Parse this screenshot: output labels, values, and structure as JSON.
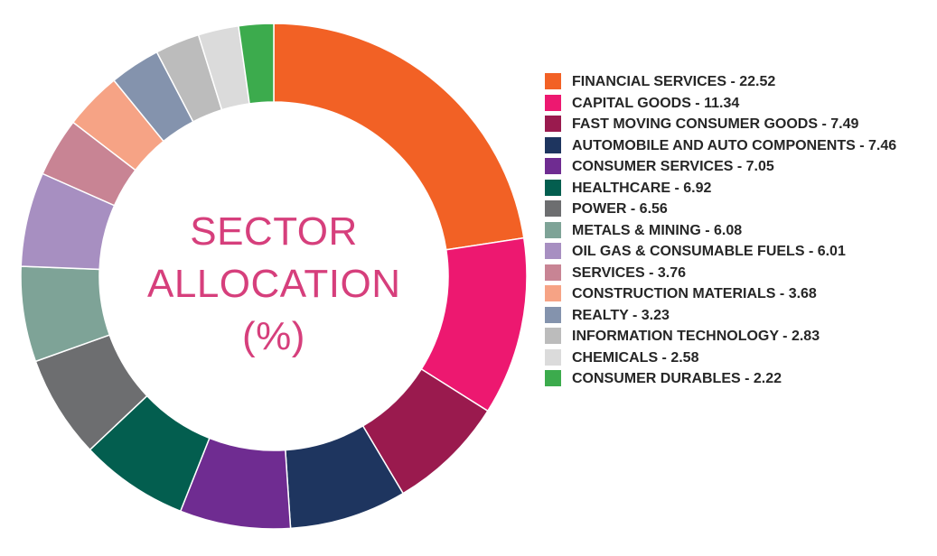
{
  "center_title": {
    "line1": "SECTOR",
    "line2": "ALLOCATION",
    "line3": "(%)"
  },
  "chart_data": {
    "type": "pie",
    "title": "SECTOR ALLOCATION (%)",
    "donut": true,
    "start_angle_deg": 0,
    "direction": "clockwise",
    "categories": [
      "FINANCIAL SERVICES",
      "CAPITAL GOODS",
      "FAST MOVING CONSUMER GOODS",
      "AUTOMOBILE AND AUTO COMPONENTS",
      "CONSUMER SERVICES",
      "HEALTHCARE",
      "POWER",
      "METALS & MINING",
      "OIL GAS & CONSUMABLE FUELS",
      "SERVICES",
      "CONSTRUCTION MATERIALS",
      "REALTY",
      "INFORMATION TECHNOLOGY",
      "CHEMICALS",
      "CONSUMER DURABLES"
    ],
    "values": [
      22.52,
      11.34,
      7.49,
      7.46,
      7.05,
      6.92,
      6.56,
      6.08,
      6.01,
      3.76,
      3.68,
      3.23,
      2.83,
      2.58,
      2.22
    ],
    "colors": [
      "#f26125",
      "#ed1870",
      "#9a1a4e",
      "#1e355f",
      "#6f2c91",
      "#035e4f",
      "#6d6e70",
      "#7ea397",
      "#a78fc1",
      "#c88494",
      "#f6a385",
      "#8493ad",
      "#bcbcbc",
      "#dbdbdb",
      "#3cab4d"
    ],
    "legend_position": "right"
  },
  "legend": {
    "items": [
      {
        "label": "FINANCIAL SERVICES - 22.52",
        "color": "#f26125"
      },
      {
        "label": "CAPITAL GOODS - 11.34",
        "color": "#ed1870"
      },
      {
        "label": "FAST MOVING CONSUMER GOODS - 7.49",
        "color": "#9a1a4e"
      },
      {
        "label": "AUTOMOBILE AND AUTO COMPONENTS - 7.46",
        "color": "#1e355f"
      },
      {
        "label": "CONSUMER SERVICES - 7.05",
        "color": "#6f2c91"
      },
      {
        "label": "HEALTHCARE - 6.92",
        "color": "#035e4f"
      },
      {
        "label": "POWER - 6.56",
        "color": "#6d6e70"
      },
      {
        "label": "METALS & MINING - 6.08",
        "color": "#7ea397"
      },
      {
        "label": "OIL GAS & CONSUMABLE FUELS - 6.01",
        "color": "#a78fc1"
      },
      {
        "label": "SERVICES - 3.76",
        "color": "#c88494"
      },
      {
        "label": "CONSTRUCTION MATERIALS - 3.68",
        "color": "#f6a385"
      },
      {
        "label": "REALTY - 3.23",
        "color": "#8493ad"
      },
      {
        "label": "INFORMATION TECHNOLOGY - 2.83",
        "color": "#bcbcbc"
      },
      {
        "label": "CHEMICALS - 2.58",
        "color": "#dbdbdb"
      },
      {
        "label": "CONSUMER DURABLES - 2.22",
        "color": "#3cab4d"
      }
    ]
  }
}
